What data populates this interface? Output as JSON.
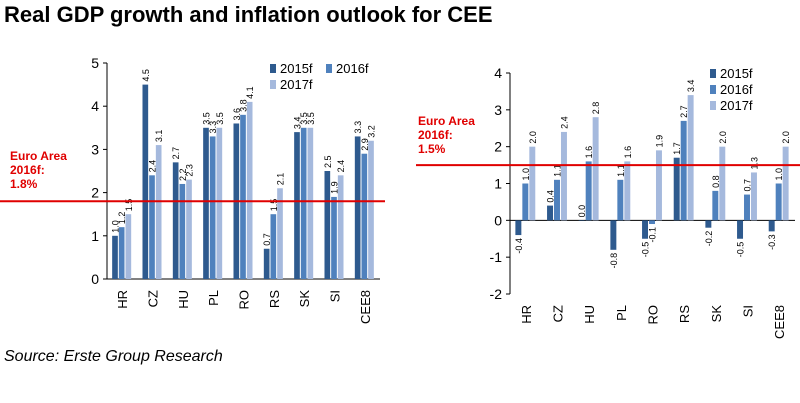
{
  "title": "Real GDP growth and inflation outlook for CEE",
  "source": "Source: Erste Group Research",
  "colors": {
    "2015f": "#2e5a8e",
    "2016f": "#4f81bd",
    "2017f": "#a5b9dd",
    "reference": "#e00000"
  },
  "chart_data": [
    {
      "type": "bar",
      "name": "gdp",
      "categories": [
        "HR",
        "CZ",
        "HU",
        "PL",
        "RO",
        "RS",
        "SK",
        "SI",
        "CEE8"
      ],
      "series": [
        {
          "name": "2015f",
          "values": [
            1.0,
            4.5,
            2.7,
            3.5,
            3.6,
            0.7,
            3.4,
            2.5,
            3.3
          ]
        },
        {
          "name": "2016f",
          "values": [
            1.2,
            2.4,
            2.2,
            3.3,
            3.8,
            1.5,
            3.5,
            1.9,
            2.9
          ]
        },
        {
          "name": "2017f",
          "values": [
            1.5,
            3.1,
            2.3,
            3.5,
            4.1,
            2.1,
            3.5,
            2.4,
            3.2
          ]
        }
      ],
      "ylim": [
        0,
        5
      ],
      "yticks": [
        "0",
        "1",
        "2",
        "3",
        "4",
        "5"
      ],
      "reference": {
        "value": 1.8,
        "label": [
          "Euro Area",
          "2016f:",
          "1.8%"
        ]
      },
      "legend_position": "top-right",
      "grid": false
    },
    {
      "type": "bar",
      "name": "inflation",
      "categories": [
        "HR",
        "CZ",
        "HU",
        "PL",
        "RO",
        "RS",
        "SK",
        "SI",
        "CEE8"
      ],
      "series": [
        {
          "name": "2015f",
          "values": [
            -0.4,
            0.4,
            0.0,
            -0.8,
            -0.5,
            1.7,
            -0.2,
            -0.5,
            -0.3
          ]
        },
        {
          "name": "2016f",
          "values": [
            1.0,
            1.1,
            1.6,
            1.1,
            -0.1,
            2.7,
            0.8,
            0.7,
            1.0
          ]
        },
        {
          "name": "2017f",
          "values": [
            2.0,
            2.4,
            2.8,
            1.6,
            1.9,
            3.4,
            2.0,
            1.3,
            2.0
          ]
        }
      ],
      "ylim": [
        -2,
        4
      ],
      "yticks": [
        "-2",
        "-1",
        "0",
        "1",
        "2",
        "3",
        "4"
      ],
      "reference": {
        "value": 1.5,
        "label": [
          "Euro Area",
          "2016f:",
          "1.5%"
        ]
      },
      "legend_position": "top-right",
      "grid": false
    }
  ]
}
